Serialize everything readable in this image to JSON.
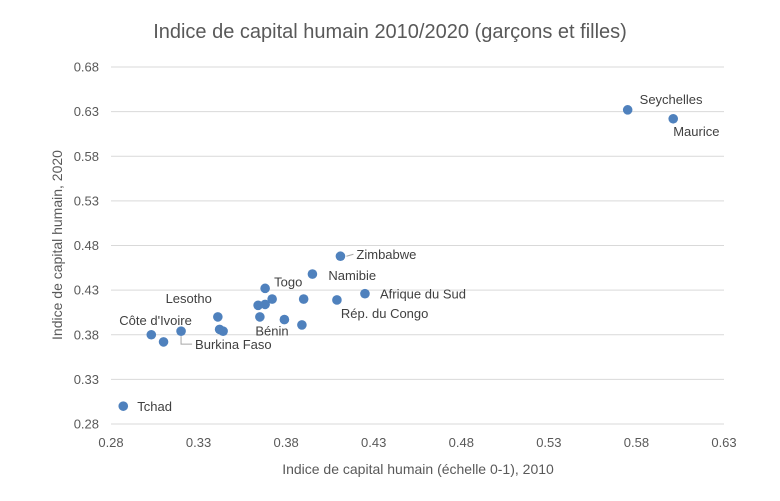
{
  "chart_data": {
    "type": "scatter",
    "title": "Indice de capital humain 2010/2020 (garçons et filles)",
    "xlabel": "Indice de capital humain (échelle 0-1), 2010",
    "ylabel": "Indice de capital humain, 2020",
    "xlim": [
      0.28,
      0.63
    ],
    "ylim": [
      0.28,
      0.68
    ],
    "x_ticks": [
      "0.28",
      "0.33",
      "0.38",
      "0.43",
      "0.48",
      "0.53",
      "0.58",
      "0.63"
    ],
    "y_ticks": [
      "0.28",
      "0.33",
      "0.38",
      "0.43",
      "0.48",
      "0.53",
      "0.58",
      "0.63",
      "0.68"
    ],
    "grid": "horizontal",
    "marker_color": "#4f81bd",
    "points": [
      {
        "x": 0.575,
        "y": 0.632,
        "label": "Seychelles"
      },
      {
        "x": 0.601,
        "y": 0.622,
        "label": "Maurice"
      },
      {
        "x": 0.411,
        "y": 0.468,
        "label": "Zimbabwe"
      },
      {
        "x": 0.395,
        "y": 0.448,
        "label": "Namibie"
      },
      {
        "x": 0.425,
        "y": 0.426,
        "label": "Afrique du Sud"
      },
      {
        "x": 0.409,
        "y": 0.419,
        "label": "Rép. du Congo"
      },
      {
        "x": 0.368,
        "y": 0.432,
        "label": "Togo"
      },
      {
        "x": 0.341,
        "y": 0.4,
        "label": "Lesotho"
      },
      {
        "x": 0.379,
        "y": 0.397,
        "label": "Bénin"
      },
      {
        "x": 0.303,
        "y": 0.38,
        "label": "Côte d'Ivoire"
      },
      {
        "x": 0.32,
        "y": 0.384,
        "label": "Burkina Faso"
      },
      {
        "x": 0.287,
        "y": 0.3,
        "label": "Tchad"
      },
      {
        "x": 0.31,
        "y": 0.372,
        "label": ""
      },
      {
        "x": 0.342,
        "y": 0.386,
        "label": ""
      },
      {
        "x": 0.344,
        "y": 0.384,
        "label": ""
      },
      {
        "x": 0.364,
        "y": 0.413,
        "label": ""
      },
      {
        "x": 0.368,
        "y": 0.414,
        "label": ""
      },
      {
        "x": 0.372,
        "y": 0.42,
        "label": ""
      },
      {
        "x": 0.365,
        "y": 0.4,
        "label": ""
      },
      {
        "x": 0.39,
        "y": 0.42,
        "label": ""
      },
      {
        "x": 0.389,
        "y": 0.391,
        "label": ""
      }
    ]
  }
}
